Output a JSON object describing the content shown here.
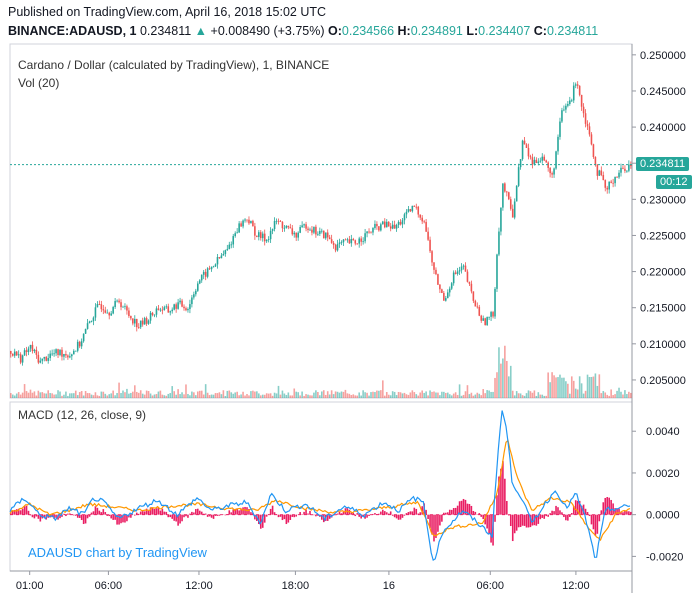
{
  "header": {
    "published": "Published on TradingView.com, April 16, 2018 15:02 UTC",
    "symbol": "BINANCE:ADAUSD, 1",
    "last": "0.234811",
    "change": "+0.008490 (+3.75%)",
    "o_label": "O:",
    "o_value": "0.234566",
    "h_label": "H:",
    "h_value": "0.234891",
    "l_label": "L:",
    "l_value": "0.234407",
    "c_label": "C:",
    "c_value": "0.234811"
  },
  "legends": {
    "main": "Cardano / Dollar (calculated by TradingView), 1, BINANCE",
    "volume": "Vol (20)",
    "macd": "MACD (12, 26, close, 9)"
  },
  "watermark": "ADAUSD chart by TradingView",
  "badges": {
    "price": "0.234811",
    "countdown": "00:12"
  },
  "colors": {
    "up": "#26a69a",
    "down": "#ef5350",
    "macd_line": "#2196f3",
    "signal_line": "#ff9800",
    "histogram": "#e91e63",
    "price_line": "#26a69a"
  },
  "chart_data": [
    {
      "type": "candlestick",
      "title": "Cardano / Dollar (calculated by TradingView), 1, BINANCE",
      "ylim": [
        0.2025,
        0.2515
      ],
      "y_ticks": [
        "0.250000",
        "0.245000",
        "0.240000",
        "0.235000",
        "0.230000",
        "0.225000",
        "0.220000",
        "0.215000",
        "0.210000",
        "0.205000"
      ],
      "x_ticks": [
        "01:00",
        "06:00",
        "12:00",
        "18:00",
        "16",
        "06:00",
        "12:00"
      ],
      "last_price": 0.234811,
      "series": [
        {
          "name": "close",
          "points": [
            [
              0,
              0.209
            ],
            [
              10,
              0.208
            ],
            [
              20,
              0.2095
            ],
            [
              30,
              0.2075
            ],
            [
              40,
              0.2085
            ],
            [
              50,
              0.2088
            ],
            [
              60,
              0.2085
            ],
            [
              70,
              0.21
            ],
            [
              80,
              0.213
            ],
            [
              90,
              0.2155
            ],
            [
              100,
              0.2145
            ],
            [
              110,
              0.216
            ],
            [
              120,
              0.214
            ],
            [
              130,
              0.2125
            ],
            [
              140,
              0.2135
            ],
            [
              150,
              0.215
            ],
            [
              160,
              0.2145
            ],
            [
              170,
              0.2155
            ],
            [
              180,
              0.215
            ],
            [
              190,
              0.2185
            ],
            [
              200,
              0.22
            ],
            [
              210,
              0.2215
            ],
            [
              220,
              0.223
            ],
            [
              230,
              0.226
            ],
            [
              240,
              0.2275
            ],
            [
              250,
              0.225
            ],
            [
              260,
              0.2245
            ],
            [
              270,
              0.227
            ],
            [
              280,
              0.226
            ],
            [
              290,
              0.225
            ],
            [
              300,
              0.2265
            ],
            [
              310,
              0.2255
            ],
            [
              320,
              0.225
            ],
            [
              330,
              0.2235
            ],
            [
              340,
              0.224
            ],
            [
              350,
              0.224
            ],
            [
              360,
              0.225
            ],
            [
              370,
              0.226
            ],
            [
              380,
              0.2265
            ],
            [
              390,
              0.226
            ],
            [
              400,
              0.2275
            ],
            [
              410,
              0.229
            ],
            [
              420,
              0.227
            ],
            [
              430,
              0.22
            ],
            [
              440,
              0.216
            ],
            [
              450,
              0.2195
            ],
            [
              460,
              0.2205
            ],
            [
              470,
              0.216
            ],
            [
              480,
              0.213
            ],
            [
              490,
              0.214
            ],
            [
              495,
              0.2245
            ],
            [
              500,
              0.232
            ],
            [
              505,
              0.23
            ],
            [
              510,
              0.228
            ],
            [
              520,
              0.238
            ],
            [
              530,
              0.235
            ],
            [
              540,
              0.236
            ],
            [
              550,
              0.233
            ],
            [
              560,
              0.242
            ],
            [
              570,
              0.244
            ],
            [
              575,
              0.247
            ],
            [
              580,
              0.243
            ],
            [
              590,
              0.238
            ],
            [
              595,
              0.234
            ],
            [
              600,
              0.233
            ],
            [
              605,
              0.231
            ],
            [
              610,
              0.2325
            ],
            [
              620,
              0.234
            ],
            [
              630,
              0.2348
            ]
          ]
        },
        {
          "name": "volume",
          "peak_points": [
            [
              495,
              0.207
            ],
            [
              505,
              0.2055
            ],
            [
              555,
              0.208
            ],
            [
              560,
              0.207
            ]
          ]
        }
      ]
    },
    {
      "type": "line",
      "title": "MACD (12, 26, close, 9)",
      "ylim": [
        -0.0027,
        0.0054
      ],
      "y_ticks": [
        "0.0040",
        "0.0020",
        "0.0000",
        "-0.0020"
      ],
      "series": [
        {
          "name": "MACD",
          "points": [
            [
              0,
              0.0002
            ],
            [
              15,
              0.0008
            ],
            [
              30,
              0.0
            ],
            [
              45,
              -0.0002
            ],
            [
              60,
              0.0003
            ],
            [
              75,
              0.0
            ],
            [
              85,
              0.0008
            ],
            [
              95,
              0.0006
            ],
            [
              110,
              -0.0002
            ],
            [
              130,
              0.0003
            ],
            [
              150,
              0.0007
            ],
            [
              170,
              0.0
            ],
            [
              190,
              0.0008
            ],
            [
              205,
              0.0002
            ],
            [
              220,
              0.0004
            ],
            [
              240,
              0.0006
            ],
            [
              255,
              -0.0004
            ],
            [
              265,
              0.001
            ],
            [
              280,
              0.0002
            ],
            [
              300,
              0.0005
            ],
            [
              320,
              -0.0002
            ],
            [
              340,
              0.0004
            ],
            [
              360,
              0.0
            ],
            [
              380,
              0.0006
            ],
            [
              395,
              0.0002
            ],
            [
              410,
              0.0008
            ],
            [
              420,
              0.0006
            ],
            [
              430,
              -0.0023
            ],
            [
              440,
              -0.0008
            ],
            [
              460,
              0.0002
            ],
            [
              475,
              -0.0004
            ],
            [
              490,
              -0.001
            ],
            [
              495,
              0.0026
            ],
            [
              500,
              0.005
            ],
            [
              505,
              0.004
            ],
            [
              510,
              0.0016
            ],
            [
              520,
              0.0008
            ],
            [
              530,
              -0.0004
            ],
            [
              545,
              0.0006
            ],
            [
              555,
              0.0012
            ],
            [
              565,
              0.0003
            ],
            [
              575,
              0.001
            ],
            [
              585,
              -0.0002
            ],
            [
              595,
              -0.0022
            ],
            [
              605,
              0.0002
            ],
            [
              615,
              0.0003
            ],
            [
              630,
              0.0004
            ]
          ]
        },
        {
          "name": "Signal",
          "points": [
            [
              0,
              0.0001
            ],
            [
              20,
              0.0005
            ],
            [
              40,
              0.0
            ],
            [
              60,
              0.0002
            ],
            [
              80,
              0.0005
            ],
            [
              100,
              0.0004
            ],
            [
              130,
              0.0002
            ],
            [
              160,
              0.0004
            ],
            [
              190,
              0.0005
            ],
            [
              220,
              0.0003
            ],
            [
              250,
              0.0002
            ],
            [
              270,
              0.0007
            ],
            [
              300,
              0.0003
            ],
            [
              330,
              0.0001
            ],
            [
              360,
              0.0002
            ],
            [
              390,
              0.0004
            ],
            [
              415,
              0.0006
            ],
            [
              430,
              -0.001
            ],
            [
              450,
              -0.0006
            ],
            [
              480,
              -0.0004
            ],
            [
              495,
              0.001
            ],
            [
              505,
              0.0038
            ],
            [
              515,
              0.0018
            ],
            [
              530,
              0.0002
            ],
            [
              550,
              0.0008
            ],
            [
              570,
              0.0006
            ],
            [
              590,
              -0.0008
            ],
            [
              600,
              -0.0012
            ],
            [
              615,
              0.0
            ],
            [
              630,
              0.0003
            ]
          ]
        }
      ]
    }
  ]
}
